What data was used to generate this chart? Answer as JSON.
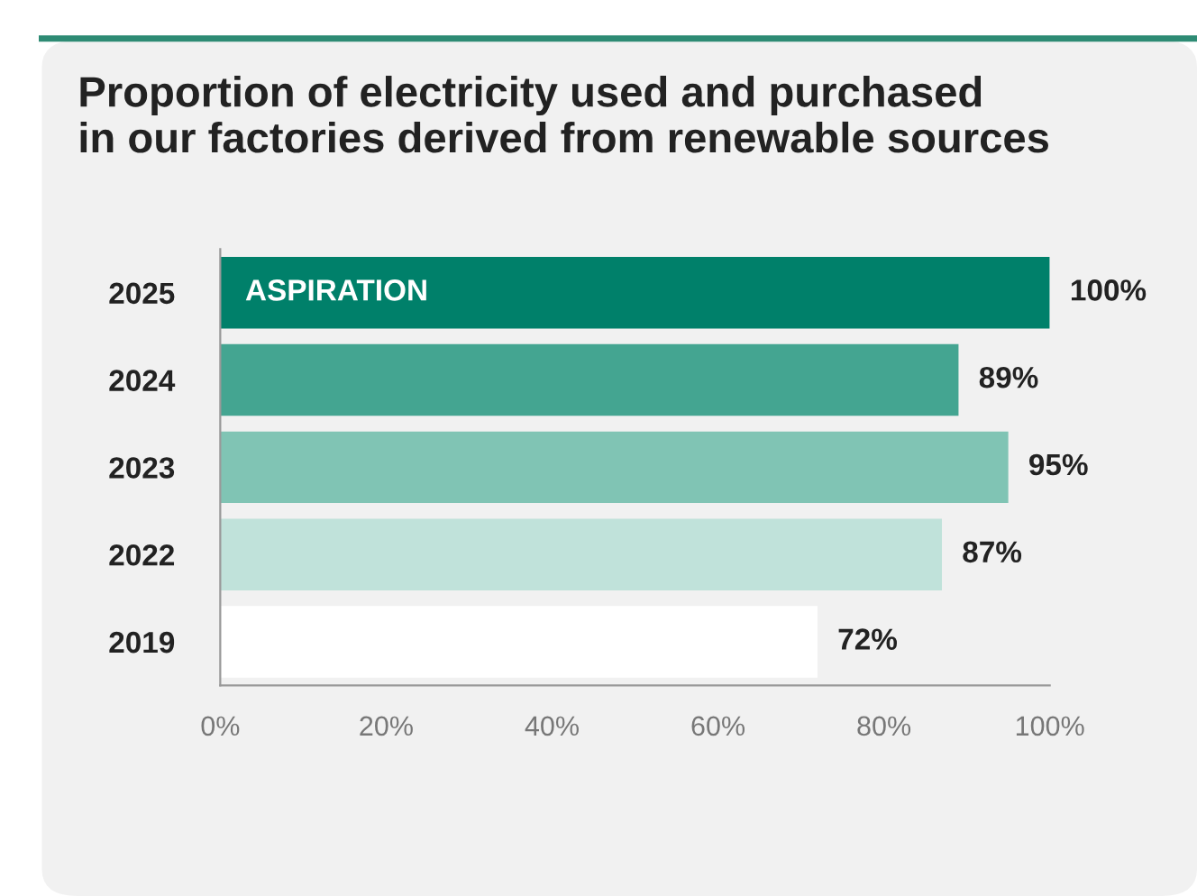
{
  "chart_data": {
    "type": "bar",
    "orientation": "horizontal",
    "title": "Proportion of electricity used and purchased\nin our factories derived from renewable sources",
    "categories": [
      "2025",
      "2024",
      "2023",
      "2022",
      "2019"
    ],
    "values": [
      100,
      89,
      95,
      87,
      72
    ],
    "colors": [
      "#00806a",
      "#44a591",
      "#80c4b4",
      "#c0e2da",
      "#ffffff"
    ],
    "value_labels": [
      "100%",
      "89%",
      "95%",
      "87%",
      "72%"
    ],
    "xlim": [
      0,
      100
    ],
    "xticks": [
      {
        "value": 0,
        "label": "0%"
      },
      {
        "value": 20,
        "label": "20%"
      },
      {
        "value": 40,
        "label": "40%"
      },
      {
        "value": 60,
        "label": "60%"
      },
      {
        "value": 80,
        "label": "80%"
      },
      {
        "value": 100,
        "label": "100%"
      }
    ],
    "annotations": [
      {
        "text": "ASPIRATION",
        "x": 0,
        "y": "2025"
      }
    ],
    "grid": false,
    "legend": false
  }
}
